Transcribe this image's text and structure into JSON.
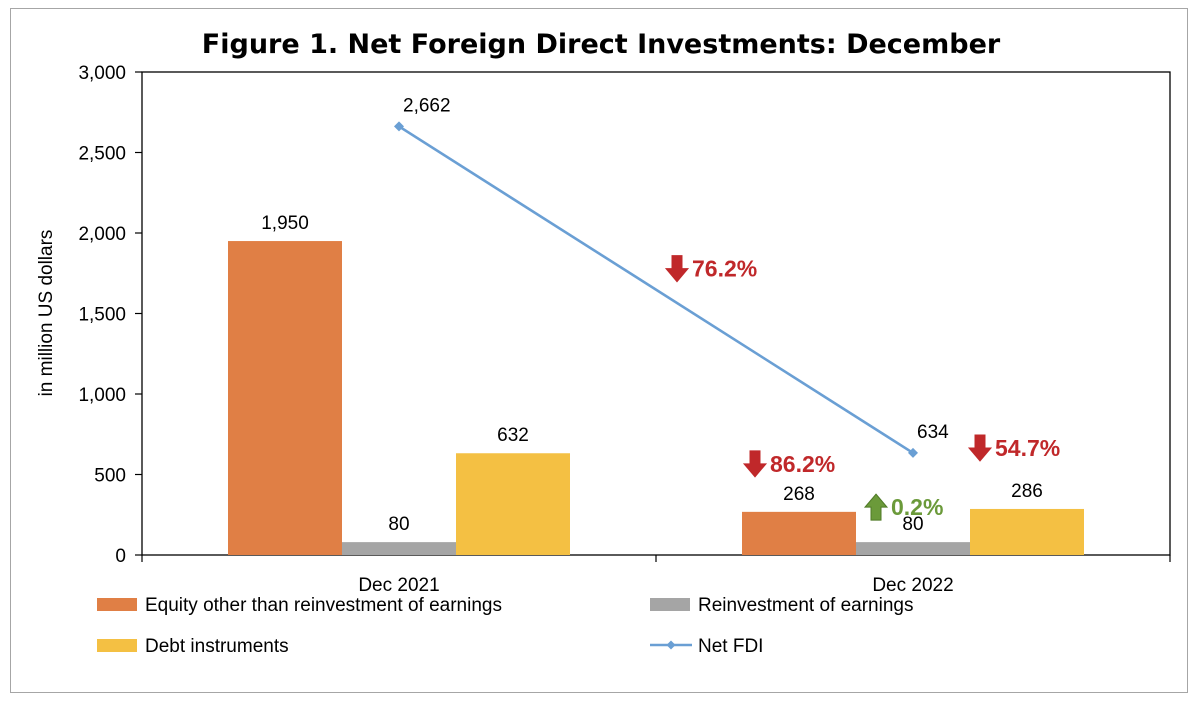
{
  "chart_data": {
    "type": "bar",
    "title": "Figure 1. Net Foreign Direct Investments: December",
    "ylabel": "in million US dollars",
    "xlabel": "",
    "ylim": [
      0,
      3000
    ],
    "yticks": [
      0,
      500,
      1000,
      1500,
      2000,
      2500,
      3000
    ],
    "ytick_labels": [
      "0",
      "500",
      "1,000",
      "1,500",
      "2,000",
      "2,500",
      "3,000"
    ],
    "categories": [
      "Dec 2021",
      "Dec 2022"
    ],
    "series": [
      {
        "name": "Equity other than reinvestment of earnings",
        "kind": "bar",
        "color": "#E07F45",
        "values": [
          1950,
          268
        ],
        "labels": [
          "1,950",
          "268"
        ]
      },
      {
        "name": "Reinvestment of earnings",
        "kind": "bar",
        "color": "#A5A5A5",
        "values": [
          80,
          80
        ],
        "labels": [
          "80",
          "80"
        ]
      },
      {
        "name": "Debt instruments",
        "kind": "bar",
        "color": "#F4C043",
        "values": [
          632,
          286
        ],
        "labels": [
          "632",
          "286"
        ]
      },
      {
        "name": "Net FDI",
        "kind": "line",
        "color": "#6A9FD4",
        "values": [
          2662,
          634
        ],
        "labels": [
          "2,662",
          "634"
        ]
      }
    ],
    "annotations": [
      {
        "text": "76.2%",
        "direction": "down",
        "color": "#C0282A",
        "refers_to": "Net FDI"
      },
      {
        "text": "86.2%",
        "direction": "down",
        "color": "#C0282A",
        "refers_to": "Equity other than reinvestment of earnings"
      },
      {
        "text": "0.2%",
        "direction": "up",
        "color": "#6B9A3A",
        "refers_to": "Reinvestment of earnings"
      },
      {
        "text": "54.7%",
        "direction": "down",
        "color": "#C0282A",
        "refers_to": "Debt instruments"
      }
    ],
    "legend_position": "bottom",
    "grid": false
  }
}
